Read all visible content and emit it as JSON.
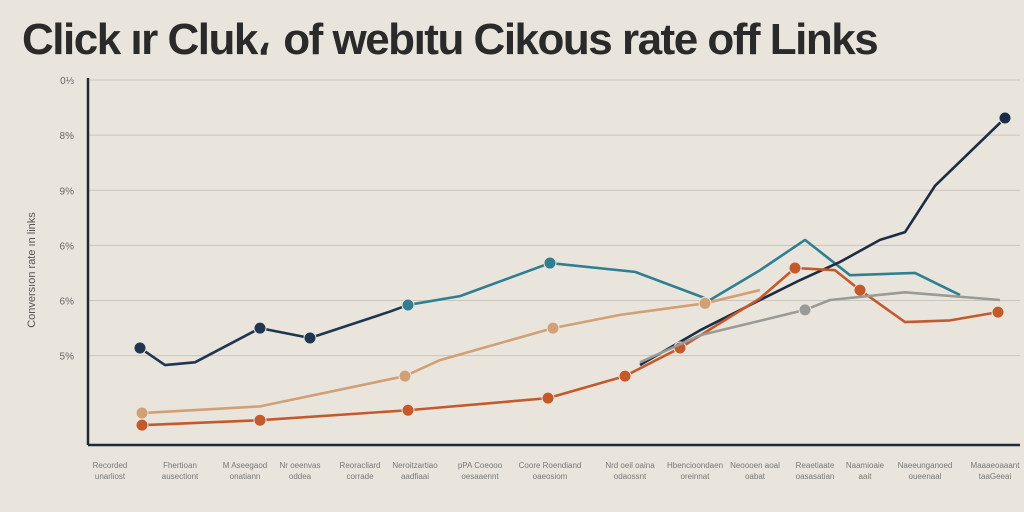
{
  "chart_data": {
    "type": "line",
    "title": "Click ır Cluk، of webıtu Cikous rate off Links",
    "xlabel": "",
    "ylabel": "Conversıon rate ın links",
    "xlim": [
      8.8,
      102
    ],
    "ylim": [
      -0.62,
      6
    ],
    "grid": true,
    "y_ticks": [
      {
        "value": 6,
        "label": "0⅓"
      },
      {
        "value": 5,
        "label": "8%"
      },
      {
        "value": 4,
        "label": "9%"
      },
      {
        "value": 3,
        "label": "6%"
      },
      {
        "value": 2,
        "label": "6%"
      },
      {
        "value": 1,
        "label": "5%"
      }
    ],
    "x_ticks": [
      {
        "value": 11,
        "label": "Recorded",
        "sub": "unarliost"
      },
      {
        "value": 18,
        "label": "Fhertioan",
        "sub": "ausectiont"
      },
      {
        "value": 24.5,
        "label": "M Aseegaod",
        "sub": "onatiann"
      },
      {
        "value": 30,
        "label": "Nr oeenvas",
        "sub": "oddea"
      },
      {
        "value": 36,
        "label": "Reoracliard",
        "sub": "corrade"
      },
      {
        "value": 41.5,
        "label": "Neroitzartiao",
        "sub": "aadfiaai"
      },
      {
        "value": 48,
        "label": "pPA Coeooo",
        "sub": "oesaaennt"
      },
      {
        "value": 55,
        "label": "Coore Roendiand",
        "sub": "oaeosiom"
      },
      {
        "value": 63,
        "label": "Nrd oeil oaina",
        "sub": "odaossnt"
      },
      {
        "value": 69.5,
        "label": "Hbencioondaen",
        "sub": "oreinnat"
      },
      {
        "value": 75.5,
        "label": "Neoooen aoal",
        "sub": "oabat"
      },
      {
        "value": 81.5,
        "label": "Reaetiaate",
        "sub": "oasasatian"
      },
      {
        "value": 86.5,
        "label": "Naamioaie",
        "sub": "aait"
      },
      {
        "value": 92.5,
        "label": "Naeeunganoed",
        "sub": "oueenaal"
      },
      {
        "value": 99.5,
        "label": "Maaaeoaaant",
        "sub": "taaGeeai"
      }
    ],
    "series": [
      {
        "name": "navy-early",
        "color": "#1f3550",
        "markers": [
          0,
          3,
          4
        ],
        "x": [
          14,
          16.5,
          19.5,
          26,
          31,
          39,
          40.8
        ],
        "y": [
          1.14,
          0.83,
          0.88,
          1.5,
          1.32,
          1.8,
          1.92
        ]
      },
      {
        "name": "teal",
        "color": "#2f7f90",
        "markers": [
          0,
          2
        ],
        "x": [
          40.8,
          46,
          55,
          63.5,
          71,
          76,
          80.5,
          85,
          91.5,
          96
        ],
        "y": [
          1.92,
          2.08,
          2.68,
          2.52,
          2.01,
          2.55,
          3.1,
          2.46,
          2.5,
          2.1
        ]
      },
      {
        "name": "navy-rising",
        "color": "#1b2d45",
        "markers": [
          8
        ],
        "x": [
          64,
          70,
          76,
          80,
          84,
          88,
          90.5,
          93.5,
          100.5
        ],
        "y": [
          0.83,
          1.46,
          2.01,
          2.37,
          2.7,
          3.1,
          3.24,
          4.08,
          5.31
        ]
      },
      {
        "name": "orange",
        "color": "#c45a2c",
        "markers": [
          0,
          1,
          2,
          3,
          4,
          5,
          7,
          9,
          12
        ],
        "x": [
          14.2,
          26,
          40.8,
          54.8,
          62.5,
          68,
          76,
          79.5,
          83.5,
          86,
          90.5,
          95,
          99.8
        ],
        "y": [
          -0.26,
          -0.17,
          0.01,
          0.23,
          0.63,
          1.14,
          2.04,
          2.59,
          2.55,
          2.19,
          1.61,
          1.64,
          1.79
        ]
      },
      {
        "name": "tan",
        "color": "#d2a077",
        "markers": [
          0,
          2,
          4,
          6
        ],
        "x": [
          14.2,
          26,
          40.5,
          44,
          55.3,
          62,
          70.5,
          76
        ],
        "y": [
          -0.04,
          0.08,
          0.63,
          0.92,
          1.5,
          1.74,
          1.95,
          2.19
        ]
      },
      {
        "name": "gray",
        "color": "#9a9a96",
        "markers": [
          2
        ],
        "x": [
          64,
          70,
          80.5,
          83,
          90.5,
          100
        ],
        "y": [
          0.88,
          1.37,
          1.83,
          2.01,
          2.15,
          2.01
        ]
      }
    ]
  }
}
